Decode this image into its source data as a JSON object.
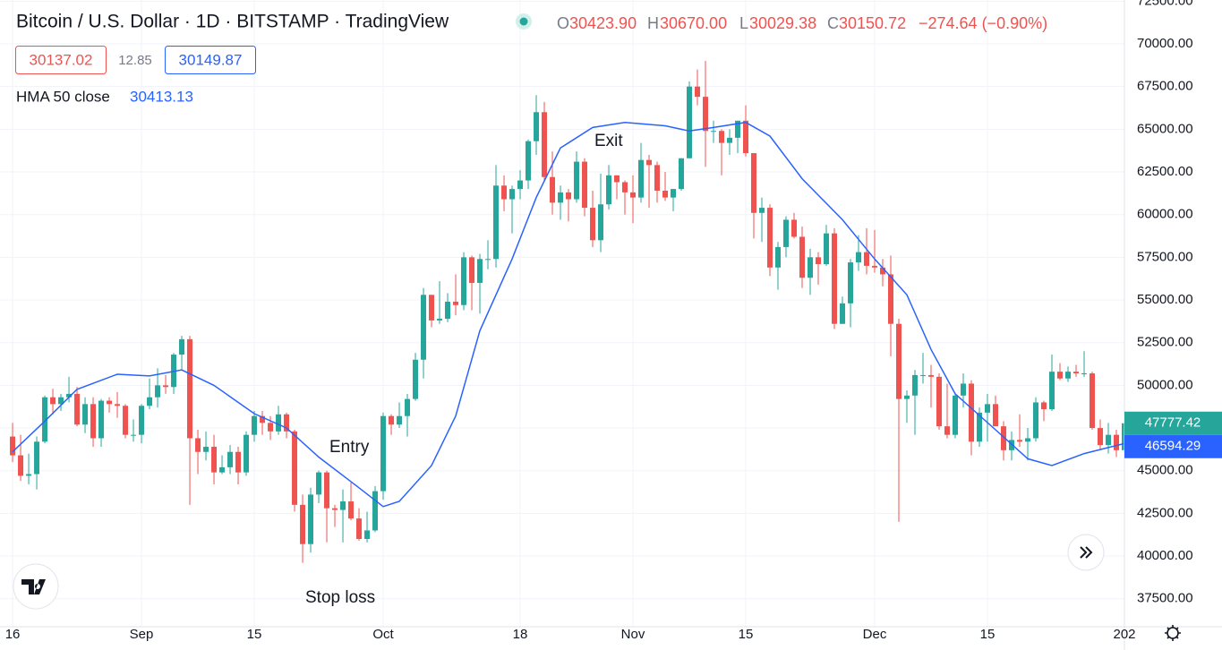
{
  "chart_data": {
    "type": "candlestick",
    "title": "Bitcoin / U.S. Dollar · 1D · BITSTAMP · TradingView",
    "quote": [
      "O",
      "30423.90",
      "H",
      "30670.00",
      "L",
      "30029.38",
      "C",
      "30150.72",
      "−274.64 (−0.90%)"
    ],
    "bid": 30137.02,
    "spread": 12.85,
    "ask": 30149.87,
    "up_color": "#26a69a",
    "down_color": "#ef5350",
    "annotations": [
      "Entry",
      "Exit",
      "Stop loss"
    ],
    "xlim": [
      -1.56,
      138
    ],
    "xticks": [
      {
        "value": 0,
        "label": "16"
      },
      {
        "value": 16,
        "label": "Sep"
      },
      {
        "value": 30,
        "label": "15"
      },
      {
        "value": 46,
        "label": "Oct"
      },
      {
        "value": 63,
        "label": "18"
      },
      {
        "value": 77,
        "label": "Nov"
      },
      {
        "value": 91,
        "label": "15"
      },
      {
        "value": 107,
        "label": "Dec"
      },
      {
        "value": 121,
        "label": "15"
      },
      {
        "value": 138,
        "label": "202"
      }
    ],
    "ylim": [
      35860,
      72570
    ],
    "yticks": [
      {
        "value": 37500,
        "label": "37500.00"
      },
      {
        "value": 40000,
        "label": "40000.00"
      },
      {
        "value": 42500,
        "label": "42500.00"
      },
      {
        "value": 45000,
        "label": "45000.00"
      },
      {
        "value": 47500,
        "label": "47500.00"
      },
      {
        "value": 50000,
        "label": "50000.00"
      },
      {
        "value": 52500,
        "label": "52500.00"
      },
      {
        "value": 55000,
        "label": "55000.00"
      },
      {
        "value": 57500,
        "label": "57500.00"
      },
      {
        "value": 60000,
        "label": "60000.00"
      },
      {
        "value": 62500,
        "label": "62500.00"
      },
      {
        "value": 65000,
        "label": "65000.00"
      },
      {
        "value": 67500,
        "label": "67500.00"
      },
      {
        "value": 70000,
        "label": "70000.00"
      },
      {
        "value": 72500,
        "label": "72500.00"
      }
    ],
    "grid": true,
    "candles": [
      [
        47000,
        47800,
        45500,
        45900
      ],
      [
        45900,
        47100,
        44400,
        44700
      ],
      [
        44700,
        46000,
        44200,
        44800
      ],
      [
        44800,
        47000,
        43900,
        46700
      ],
      [
        46700,
        49400,
        46600,
        49300
      ],
      [
        49300,
        49800,
        48300,
        48900
      ],
      [
        48900,
        49500,
        48500,
        49300
      ],
      [
        49300,
        50500,
        49000,
        49500
      ],
      [
        49500,
        49900,
        47600,
        47700
      ],
      [
        47700,
        49300,
        47200,
        48900
      ],
      [
        48900,
        49300,
        46400,
        46900
      ],
      [
        46900,
        49200,
        46400,
        49100
      ],
      [
        49100,
        49300,
        48400,
        48900
      ],
      [
        48900,
        49600,
        48100,
        48800
      ],
      [
        48800,
        48900,
        46900,
        47100
      ],
      [
        47100,
        48000,
        46700,
        47100
      ],
      [
        47100,
        48900,
        46600,
        48800
      ],
      [
        48800,
        50400,
        48600,
        49300
      ],
      [
        49300,
        51000,
        48700,
        50000
      ],
      [
        50000,
        50600,
        49500,
        49900
      ],
      [
        49900,
        51900,
        49500,
        51800
      ],
      [
        51800,
        52900,
        50900,
        52700
      ],
      [
        52700,
        52900,
        43000,
        46900
      ],
      [
        46900,
        47400,
        44800,
        46100
      ],
      [
        46100,
        47300,
        45600,
        46400
      ],
      [
        46400,
        47100,
        44200,
        44900
      ],
      [
        44900,
        45900,
        44800,
        45200
      ],
      [
        45200,
        46500,
        44800,
        46100
      ],
      [
        46100,
        46400,
        44200,
        44900
      ],
      [
        44900,
        47300,
        44700,
        47100
      ],
      [
        47100,
        48500,
        46700,
        48200
      ],
      [
        48200,
        48500,
        47100,
        47800
      ],
      [
        47800,
        48200,
        46800,
        47300
      ],
      [
        47300,
        48800,
        47100,
        48300
      ],
      [
        48300,
        48400,
        46900,
        47300
      ],
      [
        47300,
        47400,
        42600,
        43000
      ],
      [
        43000,
        43600,
        39600,
        40700
      ],
      [
        40700,
        44000,
        40200,
        43600
      ],
      [
        43600,
        45000,
        43100,
        44900
      ],
      [
        44900,
        45000,
        40800,
        42800
      ],
      [
        42800,
        43000,
        41700,
        42700
      ],
      [
        42700,
        43900,
        40800,
        43200
      ],
      [
        43200,
        44300,
        42100,
        42200
      ],
      [
        42200,
        42800,
        40900,
        41000
      ],
      [
        41000,
        42600,
        40800,
        41500
      ],
      [
        41500,
        44100,
        41400,
        43800
      ],
      [
        43800,
        48400,
        43300,
        48200
      ],
      [
        48200,
        48300,
        47100,
        47700
      ],
      [
        47700,
        49000,
        47500,
        48200
      ],
      [
        48200,
        49500,
        47000,
        49200
      ],
      [
        49200,
        51900,
        49100,
        51500
      ],
      [
        51500,
        55700,
        50400,
        55300
      ],
      [
        55300,
        55300,
        53400,
        53800
      ],
      [
        53800,
        56100,
        53600,
        53900
      ],
      [
        53900,
        55400,
        53700,
        54900
      ],
      [
        54900,
        56500,
        54100,
        54700
      ],
      [
        54700,
        57800,
        54400,
        57500
      ],
      [
        57500,
        57600,
        54400,
        56000
      ],
      [
        56000,
        57700,
        54200,
        57400
      ],
      [
        57400,
        58500,
        56800,
        57400
      ],
      [
        57400,
        62900,
        56900,
        61700
      ],
      [
        61700,
        62300,
        60200,
        60900
      ],
      [
        60900,
        61700,
        58900,
        61500
      ],
      [
        61500,
        62600,
        60900,
        62000
      ],
      [
        62000,
        64400,
        61500,
        64300
      ],
      [
        64300,
        67000,
        63500,
        66000
      ],
      [
        66000,
        66600,
        62000,
        62200
      ],
      [
        62200,
        63700,
        60000,
        60700
      ],
      [
        60700,
        61700,
        59700,
        61300
      ],
      [
        61300,
        61500,
        59600,
        60900
      ],
      [
        60900,
        63700,
        60700,
        63100
      ],
      [
        63100,
        63300,
        59900,
        60400
      ],
      [
        60400,
        61400,
        58100,
        58500
      ],
      [
        58500,
        62400,
        57800,
        60600
      ],
      [
        60600,
        62900,
        60300,
        62300
      ],
      [
        62300,
        62300,
        60900,
        61900
      ],
      [
        61900,
        62000,
        60000,
        61300
      ],
      [
        61300,
        62300,
        59500,
        61000
      ],
      [
        61000,
        64200,
        60700,
        63200
      ],
      [
        63200,
        63500,
        60400,
        62900
      ],
      [
        62900,
        63100,
        60700,
        61400
      ],
      [
        61400,
        62500,
        60800,
        61000
      ],
      [
        61000,
        61500,
        60200,
        61500
      ],
      [
        61500,
        63300,
        61400,
        63300
      ],
      [
        63300,
        67800,
        63300,
        67500
      ],
      [
        67500,
        68500,
        66400,
        66900
      ],
      [
        66900,
        69000,
        62800,
        64900
      ],
      [
        64900,
        65500,
        64200,
        64900
      ],
      [
        64900,
        65000,
        62300,
        64200
      ],
      [
        64200,
        65000,
        63500,
        64500
      ],
      [
        64500,
        65500,
        63600,
        65500
      ],
      [
        65500,
        66400,
        63400,
        63600
      ],
      [
        63600,
        63600,
        58600,
        60100
      ],
      [
        60100,
        61000,
        58400,
        60400
      ],
      [
        60400,
        60600,
        56400,
        56900
      ],
      [
        56900,
        58400,
        55600,
        58100
      ],
      [
        58100,
        59900,
        57500,
        59700
      ],
      [
        59700,
        60100,
        58600,
        58700
      ],
      [
        58700,
        59300,
        55700,
        56300
      ],
      [
        56300,
        58000,
        55300,
        57500
      ],
      [
        57500,
        57800,
        55900,
        57100
      ],
      [
        57100,
        59400,
        57000,
        58900
      ],
      [
        58900,
        59200,
        53300,
        53600
      ],
      [
        53600,
        55200,
        53600,
        54800
      ],
      [
        54800,
        57400,
        53400,
        57200
      ],
      [
        57200,
        58800,
        56700,
        57800
      ],
      [
        57800,
        59200,
        56500,
        57000
      ],
      [
        57000,
        59100,
        56600,
        56900
      ],
      [
        56900,
        57400,
        55800,
        56500
      ],
      [
        56500,
        57600,
        51700,
        53600
      ],
      [
        53600,
        53900,
        42000,
        49200
      ],
      [
        49200,
        49700,
        47800,
        49400
      ],
      [
        49400,
        50900,
        47100,
        50600
      ],
      [
        50600,
        51900,
        50100,
        50600
      ],
      [
        50600,
        51200,
        48700,
        50500
      ],
      [
        50500,
        50700,
        47400,
        47600
      ],
      [
        47600,
        50100,
        46900,
        47100
      ],
      [
        47100,
        49500,
        46900,
        49400
      ],
      [
        49400,
        50700,
        48700,
        50100
      ],
      [
        50100,
        50300,
        45900,
        46700
      ],
      [
        46700,
        48700,
        46400,
        48400
      ],
      [
        48400,
        49500,
        46700,
        48900
      ],
      [
        48900,
        49400,
        47600,
        47600
      ],
      [
        47600,
        47900,
        45600,
        46200
      ],
      [
        46200,
        47300,
        45600,
        46800
      ],
      [
        46800,
        48300,
        46400,
        46700
      ],
      [
        46700,
        47500,
        45600,
        46900
      ],
      [
        46900,
        49300,
        46700,
        49000
      ],
      [
        49000,
        49100,
        47900,
        48600
      ],
      [
        48600,
        51800,
        48500,
        50800
      ],
      [
        50800,
        51300,
        50300,
        50400
      ],
      [
        50400,
        51100,
        50200,
        50800
      ],
      [
        50800,
        51200,
        50500,
        50700
      ],
      [
        50700,
        52000,
        50500,
        50700
      ],
      [
        50700,
        50800,
        47400,
        47500
      ],
      [
        47500,
        48000,
        46200,
        46500
      ],
      [
        46500,
        47800,
        46000,
        47100
      ],
      [
        47100,
        47400,
        45800,
        46200
      ],
      [
        46200,
        47800,
        46200,
        47777.42
      ]
    ],
    "indicator": {
      "name": "HMA 50 close",
      "value": 30413.13,
      "color": "#2962ff",
      "x": [
        0,
        4,
        8,
        13,
        17,
        21,
        25,
        30,
        34,
        38,
        43,
        46,
        48,
        52,
        55,
        58,
        62,
        65,
        68,
        72,
        76,
        81,
        84,
        87,
        91,
        94,
        98,
        103,
        107,
        111,
        114,
        117,
        122,
        126,
        129,
        133,
        138
      ],
      "values": [
        46100,
        47900,
        49760,
        50650,
        50550,
        50900,
        50000,
        48340,
        47500,
        45800,
        44000,
        42900,
        43200,
        45300,
        48200,
        53200,
        57400,
        61000,
        63900,
        65100,
        65400,
        65200,
        64900,
        65100,
        65400,
        64600,
        62100,
        59700,
        57400,
        55300,
        52100,
        49500,
        47400,
        45700,
        45300,
        46000,
        46594.29
      ]
    }
  }
}
